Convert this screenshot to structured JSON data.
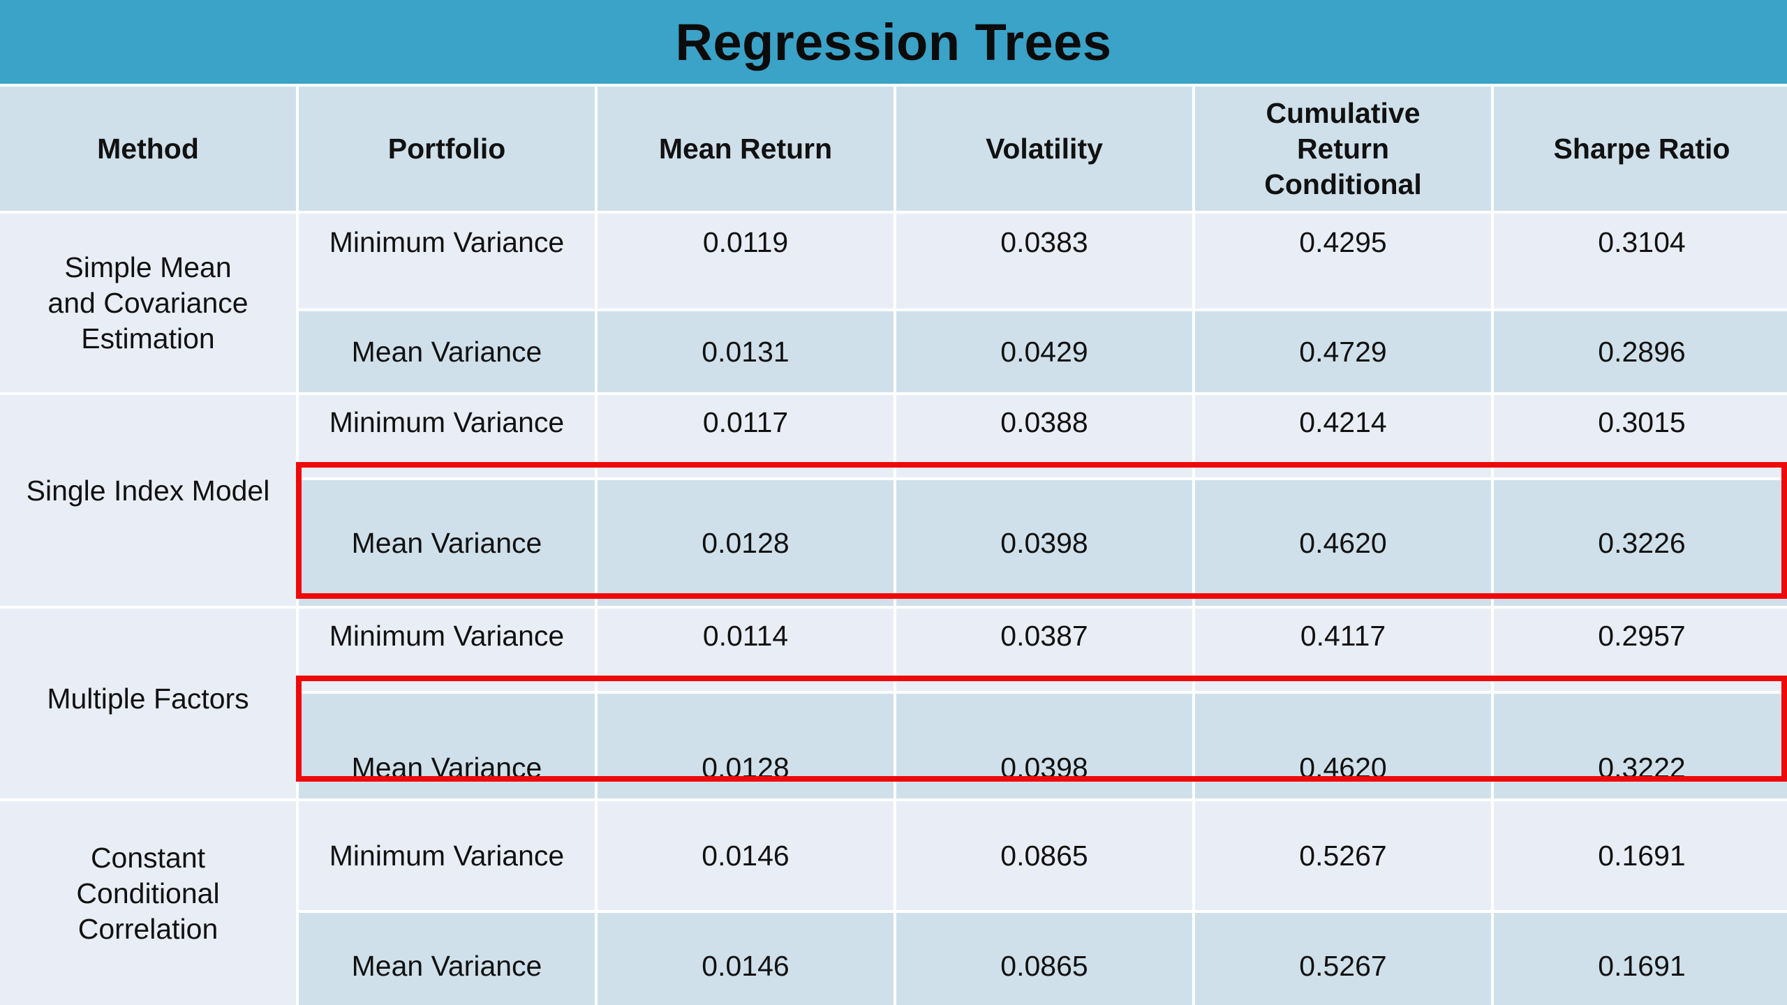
{
  "title": "Regression Trees",
  "columns": [
    "Method",
    "Portfolio",
    "Mean Return",
    "Volatility",
    "Cumulative Return Conditional",
    "Sharpe Ratio"
  ],
  "header_lines": {
    "cumulative": [
      "Cumulative",
      "Return",
      "Conditional"
    ]
  },
  "methods": [
    {
      "name_lines": [
        "Simple Mean",
        "and Covariance",
        "Estimation"
      ],
      "rows": [
        {
          "portfolio": "Minimum Variance",
          "mean_return": "0.0119",
          "volatility": "0.0383",
          "cumulative_return": "0.4295",
          "sharpe_ratio": "0.3104"
        },
        {
          "portfolio": "Mean Variance",
          "mean_return": "0.0131",
          "volatility": "0.0429",
          "cumulative_return": "0.4729",
          "sharpe_ratio": "0.2896"
        }
      ]
    },
    {
      "name_lines": [
        "Single Index Model"
      ],
      "rows": [
        {
          "portfolio": "Minimum Variance",
          "mean_return": "0.0117",
          "volatility": "0.0388",
          "cumulative_return": "0.4214",
          "sharpe_ratio": "0.3015"
        },
        {
          "portfolio": "Mean Variance",
          "mean_return": "0.0128",
          "volatility": "0.0398",
          "cumulative_return": "0.4620",
          "sharpe_ratio": "0.3226",
          "highlighted": true
        }
      ]
    },
    {
      "name_lines": [
        "Multiple Factors"
      ],
      "rows": [
        {
          "portfolio": "Minimum Variance",
          "mean_return": "0.0114",
          "volatility": "0.0387",
          "cumulative_return": "0.4117",
          "sharpe_ratio": "0.2957"
        },
        {
          "portfolio": "Mean Variance",
          "mean_return": "0.0128",
          "volatility": "0.0398",
          "cumulative_return": "0.4620",
          "sharpe_ratio": "0.3222",
          "highlighted": true
        }
      ]
    },
    {
      "name_lines": [
        "Constant",
        "Conditional",
        "Correlation"
      ],
      "rows": [
        {
          "portfolio": "Minimum Variance",
          "mean_return": "0.0146",
          "volatility": "0.0865",
          "cumulative_return": "0.5267",
          "sharpe_ratio": "0.1691"
        },
        {
          "portfolio": "Mean Variance",
          "mean_return": "0.0146",
          "volatility": "0.0865",
          "cumulative_return": "0.5267",
          "sharpe_ratio": "0.1691"
        }
      ]
    }
  ],
  "colors": {
    "title_bar": "#3ba2c8",
    "header_bg": "#cfe0ea",
    "row_light": "#e9eef6",
    "row_dark": "#cfe0ea",
    "highlight": "#ee0a0a"
  }
}
